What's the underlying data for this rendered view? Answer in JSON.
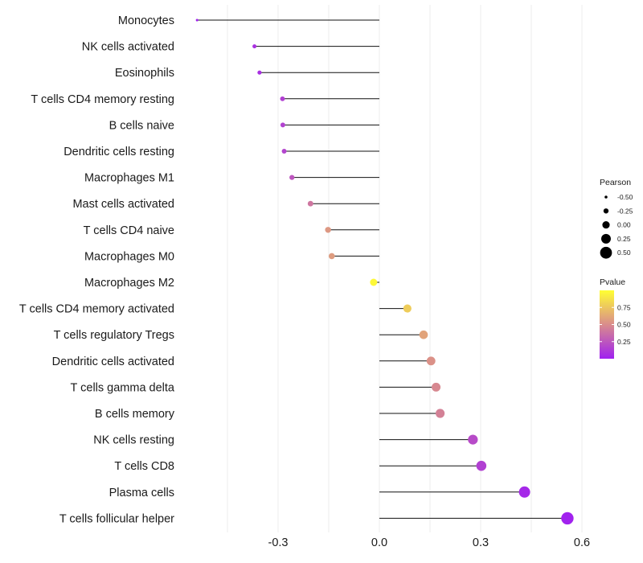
{
  "chart_data": {
    "type": "lollipop",
    "title": "",
    "xlabel": "",
    "ylabel": "",
    "xlim": [
      -0.45,
      0.6
    ],
    "x_ticks": [
      -0.3,
      0.0,
      0.3,
      0.6
    ],
    "x_tick_labels": [
      "-0.3",
      "0.0",
      "0.3",
      "0.6"
    ],
    "categories": [
      "Monocytes",
      "NK cells activated",
      "Eosinophils",
      "T cells CD4 memory resting",
      "B cells naive",
      "Dendritic cells resting",
      "Macrophages M1",
      "Mast cells activated",
      "T cells CD4 naive",
      "Macrophages M0",
      "Macrophages M2",
      "T cells CD4 memory activated",
      "T cells regulatory  Tregs ",
      "Dendritic cells activated",
      "T cells gamma delta",
      "B cells memory",
      "NK cells resting",
      "T cells CD8",
      "Plasma cells",
      "T cells follicular helper"
    ],
    "pearson": [
      -0.54,
      -0.37,
      -0.355,
      -0.287,
      -0.286,
      -0.282,
      -0.259,
      -0.204,
      -0.152,
      -0.141,
      -0.017,
      0.083,
      0.131,
      0.153,
      0.168,
      0.18,
      0.277,
      0.302,
      0.43,
      0.557
    ],
    "pvalue": [
      0.01,
      0.08,
      0.07,
      0.15,
      0.16,
      0.17,
      0.25,
      0.4,
      0.55,
      0.57,
      0.97,
      0.78,
      0.6,
      0.52,
      0.48,
      0.45,
      0.2,
      0.15,
      0.04,
      0.01
    ],
    "size_legend": {
      "title": "Pearson",
      "values": [
        -0.5,
        -0.25,
        0.0,
        0.25,
        0.5
      ],
      "labels": [
        "-0.50",
        "-0.25",
        "0.00",
        "0.25",
        "0.50"
      ]
    },
    "color_legend": {
      "title": "Pvalue",
      "range": [
        0.0,
        1.0
      ],
      "ticks": [
        0.25,
        0.5,
        0.75
      ],
      "tick_labels": [
        "0.25",
        "0.50",
        "0.75"
      ],
      "low_color": "#a020f0",
      "mid_color": "#d98c8c",
      "high_color": "#ffff33"
    },
    "stem_color": "#111111",
    "grid_color": "#ececec"
  }
}
